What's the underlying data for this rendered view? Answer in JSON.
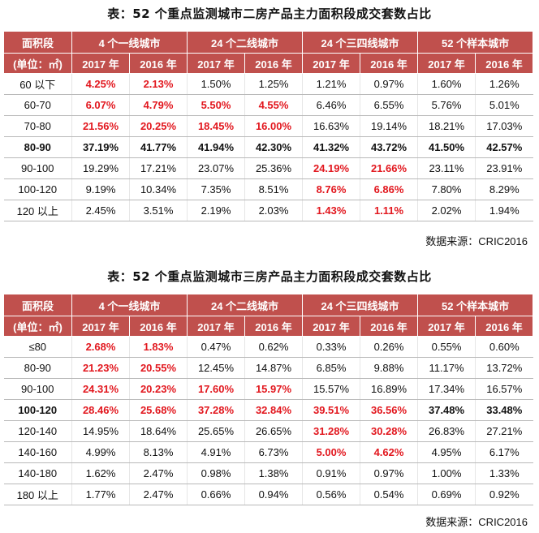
{
  "table1": {
    "title": "表：52 个重点监测城市二房产品主力面积段成交套数占比",
    "header_area": "面积段",
    "header_unit": "(单位：㎡)",
    "groups": [
      "4 个一线城市",
      "24 个二线城市",
      "24 个三四线城市",
      "52 个样本城市"
    ],
    "years": [
      "2017 年",
      "2016 年",
      "2017 年",
      "2016 年",
      "2017 年",
      "2016 年",
      "2017 年",
      "2016 年"
    ],
    "rows": [
      {
        "label": "60 以下",
        "bold": false,
        "values": [
          "4.25%",
          "2.13%",
          "1.50%",
          "1.25%",
          "1.21%",
          "0.97%",
          "1.60%",
          "1.26%"
        ],
        "red": [
          true,
          true,
          false,
          false,
          false,
          false,
          false,
          false
        ]
      },
      {
        "label": "60-70",
        "bold": false,
        "values": [
          "6.07%",
          "4.79%",
          "5.50%",
          "4.55%",
          "6.46%",
          "6.55%",
          "5.76%",
          "5.01%"
        ],
        "red": [
          true,
          true,
          true,
          true,
          false,
          false,
          false,
          false
        ]
      },
      {
        "label": "70-80",
        "bold": false,
        "values": [
          "21.56%",
          "20.25%",
          "18.45%",
          "16.00%",
          "16.63%",
          "19.14%",
          "18.21%",
          "17.03%"
        ],
        "red": [
          true,
          true,
          true,
          true,
          false,
          false,
          false,
          false
        ]
      },
      {
        "label": "80-90",
        "bold": true,
        "values": [
          "37.19%",
          "41.77%",
          "41.94%",
          "42.30%",
          "41.32%",
          "43.72%",
          "41.50%",
          "42.57%"
        ],
        "red": [
          false,
          false,
          false,
          false,
          false,
          false,
          false,
          false
        ]
      },
      {
        "label": "90-100",
        "bold": false,
        "values": [
          "19.29%",
          "17.21%",
          "23.07%",
          "25.36%",
          "24.19%",
          "21.66%",
          "23.11%",
          "23.91%"
        ],
        "red": [
          false,
          false,
          false,
          false,
          true,
          true,
          false,
          false
        ]
      },
      {
        "label": "100-120",
        "bold": false,
        "values": [
          "9.19%",
          "10.34%",
          "7.35%",
          "8.51%",
          "8.76%",
          "6.86%",
          "7.80%",
          "8.29%"
        ],
        "red": [
          false,
          false,
          false,
          false,
          true,
          true,
          false,
          false
        ]
      },
      {
        "label": "120 以上",
        "bold": false,
        "values": [
          "2.45%",
          "3.51%",
          "2.19%",
          "2.03%",
          "1.43%",
          "1.11%",
          "2.02%",
          "1.94%"
        ],
        "red": [
          false,
          false,
          false,
          false,
          true,
          true,
          false,
          false
        ]
      }
    ],
    "source": "数据来源：CRIC2016"
  },
  "table2": {
    "title": "表：52 个重点监测城市三房产品主力面积段成交套数占比",
    "header_area": "面积段",
    "header_unit": "(单位：㎡)",
    "groups": [
      "4 个一线城市",
      "24 个二线城市",
      "24 个三四线城市",
      "52 个样本城市"
    ],
    "years": [
      "2017 年",
      "2016 年",
      "2017 年",
      "2016 年",
      "2017 年",
      "2016 年",
      "2017 年",
      "2016 年"
    ],
    "rows": [
      {
        "label": "≤80",
        "bold": false,
        "values": [
          "2.68%",
          "1.83%",
          "0.47%",
          "0.62%",
          "0.33%",
          "0.26%",
          "0.55%",
          "0.60%"
        ],
        "red": [
          true,
          true,
          false,
          false,
          false,
          false,
          false,
          false
        ]
      },
      {
        "label": "80-90",
        "bold": false,
        "values": [
          "21.23%",
          "20.55%",
          "12.45%",
          "14.87%",
          "6.85%",
          "9.88%",
          "11.17%",
          "13.72%"
        ],
        "red": [
          true,
          true,
          false,
          false,
          false,
          false,
          false,
          false
        ]
      },
      {
        "label": "90-100",
        "bold": false,
        "values": [
          "24.31%",
          "20.23%",
          "17.60%",
          "15.97%",
          "15.57%",
          "16.89%",
          "17.34%",
          "16.57%"
        ],
        "red": [
          true,
          true,
          true,
          true,
          false,
          false,
          false,
          false
        ]
      },
      {
        "label": "100-120",
        "bold": true,
        "values": [
          "28.46%",
          "25.68%",
          "37.28%",
          "32.84%",
          "39.51%",
          "36.56%",
          "37.48%",
          "33.48%"
        ],
        "red": [
          true,
          true,
          true,
          true,
          true,
          true,
          false,
          false
        ]
      },
      {
        "label": "120-140",
        "bold": false,
        "values": [
          "14.95%",
          "18.64%",
          "25.65%",
          "26.65%",
          "31.28%",
          "30.28%",
          "26.83%",
          "27.21%"
        ],
        "red": [
          false,
          false,
          false,
          false,
          true,
          true,
          false,
          false
        ]
      },
      {
        "label": "140-160",
        "bold": false,
        "values": [
          "4.99%",
          "8.13%",
          "4.91%",
          "6.73%",
          "5.00%",
          "4.62%",
          "4.95%",
          "6.17%"
        ],
        "red": [
          false,
          false,
          false,
          false,
          true,
          true,
          false,
          false
        ]
      },
      {
        "label": "140-180",
        "bold": false,
        "values": [
          "1.62%",
          "2.47%",
          "0.98%",
          "1.38%",
          "0.91%",
          "0.97%",
          "1.00%",
          "1.33%"
        ],
        "red": [
          false,
          false,
          false,
          false,
          false,
          false,
          false,
          false
        ]
      },
      {
        "label": "180 以上",
        "bold": false,
        "values": [
          "1.77%",
          "2.47%",
          "0.66%",
          "0.94%",
          "0.56%",
          "0.54%",
          "0.69%",
          "0.92%"
        ],
        "red": [
          false,
          false,
          false,
          false,
          false,
          false,
          false,
          false
        ]
      }
    ],
    "source": "数据来源：CRIC2016"
  }
}
